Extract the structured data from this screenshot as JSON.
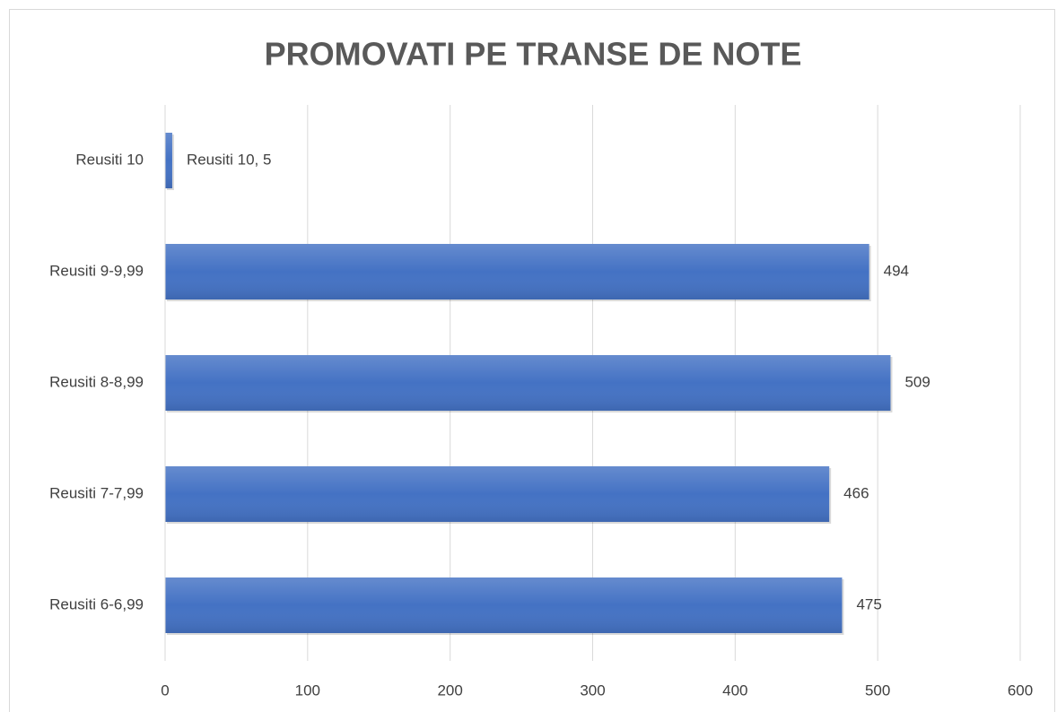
{
  "chart_data": {
    "type": "barh",
    "title": "PROMOVATI PE TRANSE DE NOTE",
    "categories": [
      "Reusiti 10",
      "Reusiti 9-9,99",
      "Reusiti 8-8,99",
      "Reusiti 7-7,99",
      "Reusiti 6-6,99"
    ],
    "values": [
      5,
      494,
      509,
      466,
      475
    ],
    "value_labels": [
      "Reusiti 10, 5",
      "494",
      "509",
      "466",
      "475"
    ],
    "color": "#4472c4",
    "xlim": [
      0,
      600
    ],
    "xticks": [
      0,
      100,
      200,
      300,
      400,
      500,
      600
    ],
    "grid": true
  }
}
